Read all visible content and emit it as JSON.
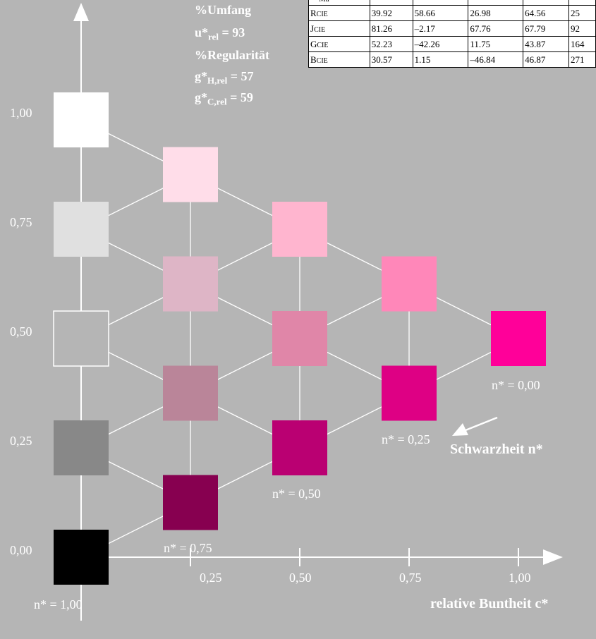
{
  "header": {
    "umfang_label": "%Umfang",
    "u_rel_label": "u*",
    "u_rel_sub": "rel",
    "u_rel_value": "= 93",
    "regularitaet_label": "%Regularität",
    "g_h_label": "g*",
    "g_h_sub": "H,rel",
    "g_h_value": "= 57",
    "g_c_label": "g*",
    "g_c_sub": "C,rel",
    "g_c_value": "= 59"
  },
  "table": {
    "partial_row": {
      "name": "Ma",
      "values": [
        "",
        "",
        "",
        "",
        ""
      ]
    },
    "rows": [
      {
        "name": "R",
        "sub": "CIE",
        "values": [
          "39.92",
          "58.66",
          "26.98",
          "64.56",
          "25"
        ]
      },
      {
        "name": "J",
        "sub": "CIE",
        "values": [
          "81.26",
          "–2.17",
          "67.76",
          "67.79",
          "92"
        ]
      },
      {
        "name": "G",
        "sub": "CIE",
        "values": [
          "52.23",
          "–42.26",
          "11.75",
          "43.87",
          "164"
        ]
      },
      {
        "name": "B",
        "sub": "CIE",
        "values": [
          "30.57",
          "1.15",
          "–46.84",
          "46.87",
          "271"
        ]
      }
    ]
  },
  "axes": {
    "y_ticks": [
      "0,00",
      "0,25",
      "0,50",
      "0,75",
      "1,00"
    ],
    "x_ticks": [
      "0,25",
      "0,50",
      "0,75",
      "1,00"
    ],
    "x_title": "relative Buntheit c*",
    "n_labels": [
      "n* = 1,00",
      "n* = 0,75",
      "n* = 0,50",
      "n* = 0,25",
      "n* = 0,00"
    ],
    "schwarzheit_label": "Schwarzheit n*"
  },
  "chart_data": {
    "type": "color-triangle-grid",
    "x_axis": "relative Buntheit c*",
    "y_axis_ticks": [
      0,
      0.25,
      0.5,
      0.75,
      1.0
    ],
    "x_axis_ticks": [
      0.25,
      0.5,
      0.75,
      1.0
    ],
    "patches": [
      {
        "c": 0.0,
        "l": 1.0,
        "color": "#ffffff"
      },
      {
        "c": 0.0,
        "l": 0.75,
        "color": "#e0e0e0"
      },
      {
        "c": 0.0,
        "l": 0.5,
        "color": "#b5b5b5",
        "outlined": true
      },
      {
        "c": 0.0,
        "l": 0.25,
        "color": "#888888"
      },
      {
        "c": 0.0,
        "l": 0.0,
        "color": "#000000"
      },
      {
        "c": 0.25,
        "l": 0.875,
        "color": "#ffdde9"
      },
      {
        "c": 0.25,
        "l": 0.625,
        "color": "#deb5c6"
      },
      {
        "c": 0.25,
        "l": 0.375,
        "color": "#ba8599"
      },
      {
        "c": 0.25,
        "l": 0.125,
        "color": "#870050"
      },
      {
        "c": 0.5,
        "l": 0.75,
        "color": "#ffb5cf"
      },
      {
        "c": 0.5,
        "l": 0.5,
        "color": "#e086a8"
      },
      {
        "c": 0.5,
        "l": 0.25,
        "color": "#ba0072"
      },
      {
        "c": 0.75,
        "l": 0.625,
        "color": "#ff87b9"
      },
      {
        "c": 0.75,
        "l": 0.375,
        "color": "#de0084"
      },
      {
        "c": 1.0,
        "l": 0.5,
        "color": "#ff0099"
      }
    ]
  }
}
